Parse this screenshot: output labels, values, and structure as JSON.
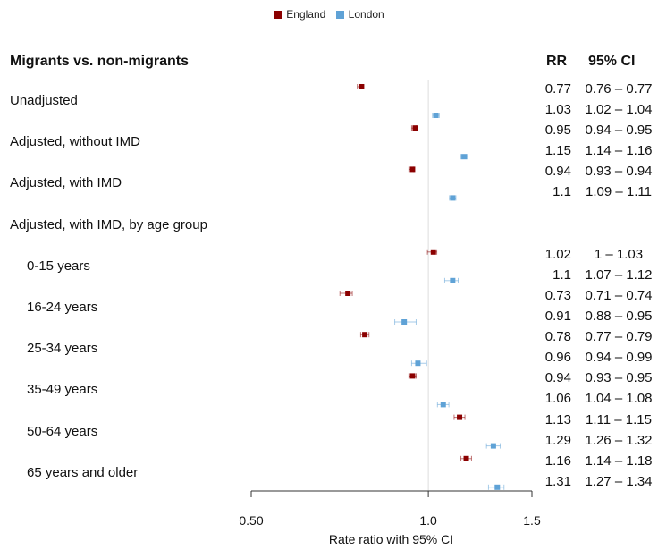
{
  "legend": [
    {
      "name": "England",
      "color": "#8b0000"
    },
    {
      "name": "London",
      "color": "#5fa2d6"
    }
  ],
  "heading": "Migrants vs. non-migrants",
  "columns": {
    "rr": "RR",
    "ci": "95% CI"
  },
  "chart_data": {
    "type": "forest",
    "xlabel": "Rate ratio with 95% CI",
    "x_ticks": [
      {
        "value": 0.5,
        "label": "0.50"
      },
      {
        "value": 1.0,
        "label": "1.0"
      },
      {
        "value": 1.5,
        "label": "1.5"
      }
    ],
    "xlim": [
      0.5,
      1.5
    ],
    "x_scale": "log",
    "reference_line": 1.0,
    "series": [
      "England",
      "London"
    ],
    "rows": [
      {
        "label": "Unadjusted",
        "indent": false,
        "values": [
          {
            "series": "England",
            "rr": 0.77,
            "lo": 0.76,
            "hi": 0.77,
            "rr_text": "0.77",
            "ci_text": "0.76 – 0.77"
          },
          {
            "series": "London",
            "rr": 1.03,
            "lo": 1.02,
            "hi": 1.04,
            "rr_text": "1.03",
            "ci_text": "1.02 – 1.04"
          }
        ]
      },
      {
        "label": "Adjusted, without IMD",
        "indent": false,
        "values": [
          {
            "series": "England",
            "rr": 0.95,
            "lo": 0.94,
            "hi": 0.95,
            "rr_text": "0.95",
            "ci_text": "0.94 – 0.95"
          },
          {
            "series": "London",
            "rr": 1.15,
            "lo": 1.14,
            "hi": 1.16,
            "rr_text": "1.15",
            "ci_text": "1.14 – 1.16"
          }
        ]
      },
      {
        "label": "Adjusted, with IMD",
        "indent": false,
        "values": [
          {
            "series": "England",
            "rr": 0.94,
            "lo": 0.93,
            "hi": 0.94,
            "rr_text": "0.94",
            "ci_text": "0.93 – 0.94"
          },
          {
            "series": "London",
            "rr": 1.1,
            "lo": 1.09,
            "hi": 1.11,
            "rr_text": "1.1",
            "ci_text": "1.09 – 1.11"
          }
        ]
      },
      {
        "label": "Adjusted, with IMD, by age group",
        "indent": false,
        "values": []
      },
      {
        "label": "0-15 years",
        "indent": true,
        "values": [
          {
            "series": "England",
            "rr": 1.02,
            "lo": 1.0,
            "hi": 1.03,
            "rr_text": "1.02",
            "ci_text": "1 – 1.03"
          },
          {
            "series": "London",
            "rr": 1.1,
            "lo": 1.07,
            "hi": 1.12,
            "rr_text": "1.1",
            "ci_text": "1.07 – 1.12"
          }
        ]
      },
      {
        "label": "16-24 years",
        "indent": true,
        "values": [
          {
            "series": "England",
            "rr": 0.73,
            "lo": 0.71,
            "hi": 0.74,
            "rr_text": "0.73",
            "ci_text": "0.71 – 0.74"
          },
          {
            "series": "London",
            "rr": 0.91,
            "lo": 0.88,
            "hi": 0.95,
            "rr_text": "0.91",
            "ci_text": "0.88 – 0.95"
          }
        ]
      },
      {
        "label": "25-34 years",
        "indent": true,
        "values": [
          {
            "series": "England",
            "rr": 0.78,
            "lo": 0.77,
            "hi": 0.79,
            "rr_text": "0.78",
            "ci_text": "0.77 – 0.79"
          },
          {
            "series": "London",
            "rr": 0.96,
            "lo": 0.94,
            "hi": 0.99,
            "rr_text": "0.96",
            "ci_text": "0.94 – 0.99"
          }
        ]
      },
      {
        "label": "35-49 years",
        "indent": true,
        "values": [
          {
            "series": "England",
            "rr": 0.94,
            "lo": 0.93,
            "hi": 0.95,
            "rr_text": "0.94",
            "ci_text": "0.93 – 0.95"
          },
          {
            "series": "London",
            "rr": 1.06,
            "lo": 1.04,
            "hi": 1.08,
            "rr_text": "1.06",
            "ci_text": "1.04 – 1.08"
          }
        ]
      },
      {
        "label": "50-64 years",
        "indent": true,
        "values": [
          {
            "series": "England",
            "rr": 1.13,
            "lo": 1.11,
            "hi": 1.15,
            "rr_text": "1.13",
            "ci_text": "1.11 – 1.15"
          },
          {
            "series": "London",
            "rr": 1.29,
            "lo": 1.26,
            "hi": 1.32,
            "rr_text": "1.29",
            "ci_text": "1.26 – 1.32"
          }
        ]
      },
      {
        "label": "65 years and older",
        "indent": true,
        "values": [
          {
            "series": "England",
            "rr": 1.16,
            "lo": 1.14,
            "hi": 1.18,
            "rr_text": "1.16",
            "ci_text": "1.14 – 1.18"
          },
          {
            "series": "London",
            "rr": 1.31,
            "lo": 1.27,
            "hi": 1.34,
            "rr_text": "1.31",
            "ci_text": "1.27 – 1.34"
          }
        ]
      }
    ]
  }
}
